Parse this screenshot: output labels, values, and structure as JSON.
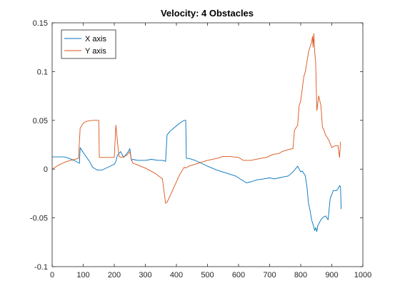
{
  "chart_data": {
    "type": "line",
    "title": "Velocity: 4 Obstacles",
    "xlabel": "",
    "ylabel": "",
    "xlim": [
      0,
      1000
    ],
    "ylim": [
      -0.1,
      0.15
    ],
    "xticks": [
      0,
      100,
      200,
      300,
      400,
      500,
      600,
      700,
      800,
      900,
      1000
    ],
    "yticks": [
      -0.1,
      -0.05,
      0,
      0.05,
      0.1,
      0.15
    ],
    "ytick_labels": [
      "-0.1",
      "-0.05",
      "0",
      "0.05",
      "0.1",
      "0.15"
    ],
    "grid": false,
    "legend_position": "top-left",
    "series": [
      {
        "name": "X axis",
        "color": "#0072BD",
        "x": [
          0,
          40,
          55,
          70,
          88,
          90,
          100,
          120,
          130,
          145,
          160,
          180,
          200,
          205,
          210,
          220,
          230,
          245,
          250,
          255,
          260,
          275,
          300,
          320,
          340,
          355,
          365,
          370,
          380,
          395,
          410,
          425,
          430,
          432,
          440,
          460,
          480,
          500,
          530,
          560,
          590,
          610,
          620,
          625,
          640,
          660,
          680,
          700,
          715,
          730,
          745,
          760,
          775,
          790,
          800,
          805,
          815,
          820,
          822,
          825,
          830,
          835,
          840,
          845,
          848,
          852,
          855,
          860,
          865,
          870,
          880,
          888,
          895,
          905,
          915,
          920,
          925,
          928,
          930
        ],
        "y": [
          0.0125,
          0.0125,
          0.011,
          0.009,
          0.006,
          0.022,
          0.017,
          0.008,
          0.002,
          -0.001,
          -0.001,
          0.002,
          0.005,
          0.008,
          0.014,
          0.018,
          0.012,
          0.018,
          0.021,
          0.009,
          0.01,
          0.009,
          0.009,
          0.01,
          0.009,
          0.009,
          0.008,
          0.035,
          0.039,
          0.043,
          0.047,
          0.05,
          0.05,
          0.011,
          0.011,
          0.009,
          0.006,
          0.003,
          -0.001,
          -0.004,
          -0.007,
          -0.011,
          -0.013,
          -0.014,
          -0.013,
          -0.011,
          -0.01,
          -0.009,
          -0.01,
          -0.009,
          -0.008,
          -0.007,
          -0.003,
          0.003,
          -0.003,
          -0.002,
          -0.007,
          -0.018,
          -0.025,
          -0.035,
          -0.042,
          -0.052,
          -0.057,
          -0.063,
          -0.06,
          -0.064,
          -0.058,
          -0.055,
          -0.052,
          -0.05,
          -0.048,
          -0.052,
          -0.03,
          -0.022,
          -0.022,
          -0.02,
          -0.017,
          -0.018,
          -0.041
        ]
      },
      {
        "name": "Y axis",
        "color": "#D95319",
        "x": [
          0,
          20,
          40,
          60,
          85,
          90,
          100,
          110,
          130,
          150,
          152,
          180,
          200,
          205,
          215,
          222,
          240,
          250,
          255,
          260,
          270,
          300,
          330,
          355,
          365,
          370,
          390,
          410,
          425,
          430,
          440,
          460,
          480,
          500,
          530,
          550,
          570,
          600,
          615,
          620,
          640,
          670,
          690,
          710,
          730,
          740,
          760,
          775,
          780,
          790,
          795,
          800,
          810,
          815,
          820,
          825,
          830,
          835,
          838,
          840,
          842,
          845,
          848,
          852,
          858,
          865,
          870,
          875,
          880,
          890,
          900,
          910,
          920,
          925,
          928
        ],
        "y": [
          0.0,
          0.004,
          0.007,
          0.009,
          0.011,
          0.042,
          0.047,
          0.049,
          0.05,
          0.05,
          0.012,
          0.012,
          0.012,
          0.045,
          0.013,
          0.012,
          0.014,
          0.018,
          0.01,
          0.006,
          0.005,
          0.001,
          -0.004,
          -0.01,
          -0.035,
          -0.034,
          -0.02,
          -0.006,
          0.002,
          0.001,
          0.003,
          0.005,
          0.007,
          0.009,
          0.011,
          0.013,
          0.013,
          0.012,
          0.009,
          0.009,
          0.009,
          0.011,
          0.012,
          0.015,
          0.016,
          0.018,
          0.02,
          0.021,
          0.04,
          0.045,
          0.065,
          0.07,
          0.095,
          0.1,
          0.11,
          0.12,
          0.125,
          0.13,
          0.136,
          0.125,
          0.139,
          0.12,
          0.11,
          0.06,
          0.075,
          0.065,
          0.043,
          0.04,
          0.035,
          0.03,
          0.022,
          0.024,
          0.024,
          0.012,
          0.028
        ]
      }
    ]
  }
}
